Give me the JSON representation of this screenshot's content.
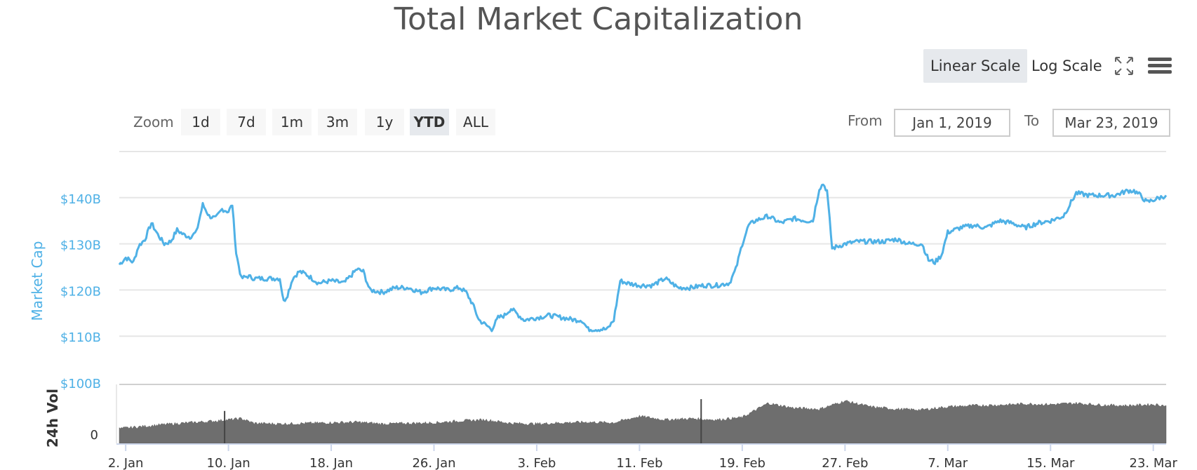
{
  "title": "Total Market Capitalization",
  "scale_toggle": {
    "linear_label": "Linear Scale",
    "log_label": "Log Scale",
    "active": "linear"
  },
  "toolbar": {
    "fullscreen_icon": "fullscreen-icon",
    "menu_icon": "hamburger-menu-icon"
  },
  "zoom": {
    "label": "Zoom",
    "buttons": [
      "1d",
      "7d",
      "1m",
      "3m",
      "1y",
      "YTD",
      "ALL"
    ],
    "active": "YTD"
  },
  "range": {
    "from_label": "From",
    "from_value": "Jan 1, 2019",
    "to_label": "To",
    "to_value": "Mar 23, 2019"
  },
  "colors": {
    "line": "#4fb1e6",
    "volume": "#6e6e6e",
    "axis_label": "#4fb1e6",
    "grid": "#e6e6e6"
  },
  "chart_data": {
    "type": "line",
    "title": "Total Market Capitalization",
    "ylabel": "Market Cap",
    "ylim": [
      100,
      150
    ],
    "y_ticks": [
      "$140B",
      "$130B",
      "$120B",
      "$110B",
      "$100B"
    ],
    "y_tick_values": [
      140,
      130,
      120,
      110,
      100
    ],
    "x_ticks": [
      "2. Jan",
      "10. Jan",
      "18. Jan",
      "26. Jan",
      "3. Feb",
      "11. Feb",
      "19. Feb",
      "27. Feb",
      "7. Mar",
      "15. Mar",
      "23. Mar"
    ],
    "x_tick_days": [
      2,
      10,
      18,
      26,
      34,
      42,
      50,
      58,
      66,
      74,
      82
    ],
    "xlim_days": [
      1.5,
      83
    ],
    "grid": true,
    "series": [
      {
        "x_days": [
          1.5,
          2,
          2.6,
          3,
          3.5,
          4,
          4.5,
          5,
          5.5,
          6,
          6.5,
          7,
          7.5,
          8,
          8.5,
          9,
          9.5,
          10,
          10.3,
          10.6,
          11,
          11.5,
          12,
          13,
          14,
          14.3,
          14.6,
          15,
          15.5,
          16,
          17,
          18,
          19,
          20,
          20.5,
          21,
          22,
          23,
          24,
          25,
          26,
          27,
          28,
          28.5,
          29,
          29.5,
          30,
          30.5,
          31,
          31.5,
          32,
          33,
          34,
          35,
          36,
          37,
          37.5,
          38,
          39,
          39.5,
          40,
          40.5,
          41,
          42,
          43,
          44,
          45,
          46,
          47,
          48,
          49,
          49.5,
          50,
          50.5,
          51,
          52,
          53,
          54,
          55,
          55.5,
          56,
          56.3,
          56.6,
          57,
          58,
          59,
          60,
          61,
          62,
          63,
          64,
          64.5,
          65,
          65.5,
          66,
          67,
          68,
          69,
          70,
          71,
          72,
          73,
          74,
          75,
          76,
          77,
          78,
          79,
          80,
          80.5,
          81,
          81.5,
          82,
          82.5,
          83
        ],
        "y": [
          125.5,
          127,
          126,
          129.5,
          131,
          134.5,
          132,
          130,
          130.5,
          133,
          132,
          131.5,
          132.5,
          138.5,
          136,
          135.5,
          137.5,
          137,
          138.5,
          128,
          122.5,
          123,
          122.5,
          122.5,
          122.5,
          117.5,
          119,
          122.5,
          124,
          123.5,
          121.5,
          122,
          121.5,
          124.5,
          124,
          120,
          119.5,
          120.5,
          120.5,
          119.5,
          120.5,
          120,
          120.5,
          119.5,
          117,
          113.5,
          112.5,
          111.5,
          114,
          114.5,
          116,
          113.5,
          114,
          114.5,
          114,
          113.5,
          113.5,
          111.5,
          111.5,
          111.5,
          113.5,
          122,
          121.5,
          121,
          121,
          122.5,
          120.5,
          120.5,
          121,
          121,
          121.5,
          124.5,
          130,
          134,
          135,
          136,
          134.5,
          135.5,
          135,
          135,
          142,
          143,
          141.5,
          129,
          130,
          130.5,
          130.5,
          130.5,
          131,
          130,
          130,
          126.5,
          126,
          127.5,
          132.5,
          133.5,
          134,
          133.5,
          135,
          134.5,
          133.5,
          134.5,
          135,
          136,
          141,
          140.5,
          140.5,
          140.5,
          141.5,
          141.5,
          140.5,
          139,
          139.5,
          140,
          140.5
        ]
      }
    ],
    "volume": {
      "label": "24h Vol",
      "y_tick": "0",
      "x_days": [
        1.5,
        3,
        5,
        7,
        9,
        11,
        12,
        14,
        16,
        18,
        20,
        22,
        24,
        26,
        28,
        30,
        32,
        34,
        36,
        38,
        40,
        42,
        44,
        46,
        48,
        50,
        52,
        54,
        56,
        58,
        60,
        62,
        64,
        66,
        68,
        70,
        72,
        74,
        76,
        78,
        80,
        82,
        83
      ],
      "level": [
        0.25,
        0.28,
        0.32,
        0.35,
        0.38,
        0.42,
        0.34,
        0.33,
        0.34,
        0.35,
        0.36,
        0.33,
        0.34,
        0.35,
        0.38,
        0.4,
        0.34,
        0.33,
        0.35,
        0.36,
        0.35,
        0.46,
        0.4,
        0.42,
        0.4,
        0.44,
        0.68,
        0.6,
        0.58,
        0.72,
        0.62,
        0.58,
        0.57,
        0.62,
        0.64,
        0.65,
        0.67,
        0.66,
        0.68,
        0.65,
        0.64,
        0.66,
        0.64
      ],
      "spikes": [
        {
          "day": 9.7,
          "level": 0.55
        },
        {
          "day": 46.8,
          "level": 0.75
        }
      ]
    }
  }
}
